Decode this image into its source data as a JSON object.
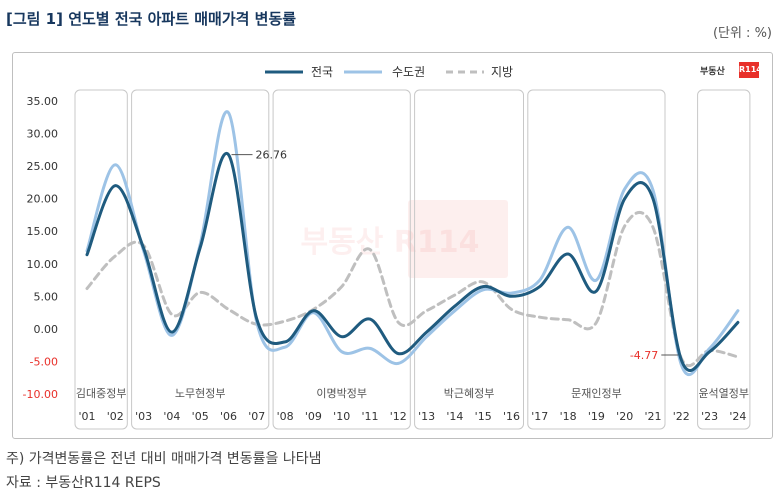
{
  "figure": {
    "title": "[그림 1] 연도별 전국 아파트 매매가격 변동률",
    "unit": "(단위 : %)",
    "note": "주) 가격변동률은 전년 대비 매매가격 변동률을 나타냄",
    "source": "자료 : 부동산R114 REPS",
    "logo_text": "부동산",
    "logo_badge": "R114",
    "watermark": "부동산 R114"
  },
  "chart_data": {
    "type": "line",
    "x": [
      "'01",
      "'02",
      "'03",
      "'04",
      "'05",
      "'06",
      "'07",
      "'08",
      "'09",
      "'10",
      "'11",
      "'12",
      "'13",
      "'14",
      "'15",
      "'16",
      "'17",
      "'18",
      "'19",
      "'20",
      "'21",
      "'22",
      "'23",
      "'24"
    ],
    "ylim": [
      -10,
      35
    ],
    "yticks": [
      {
        "value": 35,
        "label": "35.00"
      },
      {
        "value": 30,
        "label": "30.00"
      },
      {
        "value": 25,
        "label": "25.00"
      },
      {
        "value": 20,
        "label": "20.00"
      },
      {
        "value": 15,
        "label": "15.00"
      },
      {
        "value": 10,
        "label": "10.00"
      },
      {
        "value": 5,
        "label": "5.00"
      },
      {
        "value": 0,
        "label": "0.00"
      },
      {
        "value": -5,
        "label": "-5.00"
      },
      {
        "value": -10,
        "label": "-10.00"
      }
    ],
    "series": [
      {
        "name": "전국",
        "color": "#1f5b7f",
        "dash": "none",
        "values": [
          11.4,
          22.0,
          12.4,
          -0.5,
          12.5,
          26.76,
          1.5,
          -2.0,
          2.8,
          -1.2,
          1.5,
          -3.8,
          -0.5,
          3.5,
          6.5,
          5.0,
          6.5,
          11.5,
          5.8,
          20.0,
          20.0,
          -4.77,
          -3.5,
          1.0
        ]
      },
      {
        "name": "수도권",
        "color": "#9dc3e6",
        "dash": "none",
        "values": [
          12.0,
          25.2,
          12.0,
          -1.0,
          13.0,
          33.2,
          1.0,
          -2.8,
          2.5,
          -3.5,
          -3.0,
          -5.3,
          -1.2,
          2.8,
          6.0,
          5.5,
          7.5,
          15.6,
          7.5,
          21.5,
          21.3,
          -5.5,
          -3.0,
          2.8
        ]
      },
      {
        "name": "지방",
        "color": "#bfbfbf",
        "dash": "7 5",
        "values": [
          6.2,
          11.2,
          12.8,
          2.2,
          5.6,
          3.0,
          0.7,
          1.2,
          3.0,
          6.5,
          12.2,
          1.0,
          2.8,
          5.2,
          7.2,
          3.0,
          1.8,
          1.4,
          1.0,
          15.8,
          15.6,
          -4.5,
          -3.3,
          -4.3
        ]
      }
    ],
    "annotations": [
      {
        "series": "전국",
        "x": "'06",
        "label": "26.76",
        "color": "#333333"
      },
      {
        "series": "전국",
        "x": "'22",
        "label": "-4.77",
        "color": "#e8302a"
      }
    ],
    "periods": [
      {
        "label": "김대중정부",
        "from": "'01",
        "to": "'02"
      },
      {
        "label": "노무현정부",
        "from": "'03",
        "to": "'07"
      },
      {
        "label": "이명박정부",
        "from": "'08",
        "to": "'12"
      },
      {
        "label": "박근혜정부",
        "from": "'13",
        "to": "'16"
      },
      {
        "label": "문재인정부",
        "from": "'17",
        "to": "'21"
      },
      {
        "label": "윤석열정부",
        "from": "'23",
        "to": "'24"
      }
    ],
    "legend_position": "top-center",
    "grid": false
  }
}
